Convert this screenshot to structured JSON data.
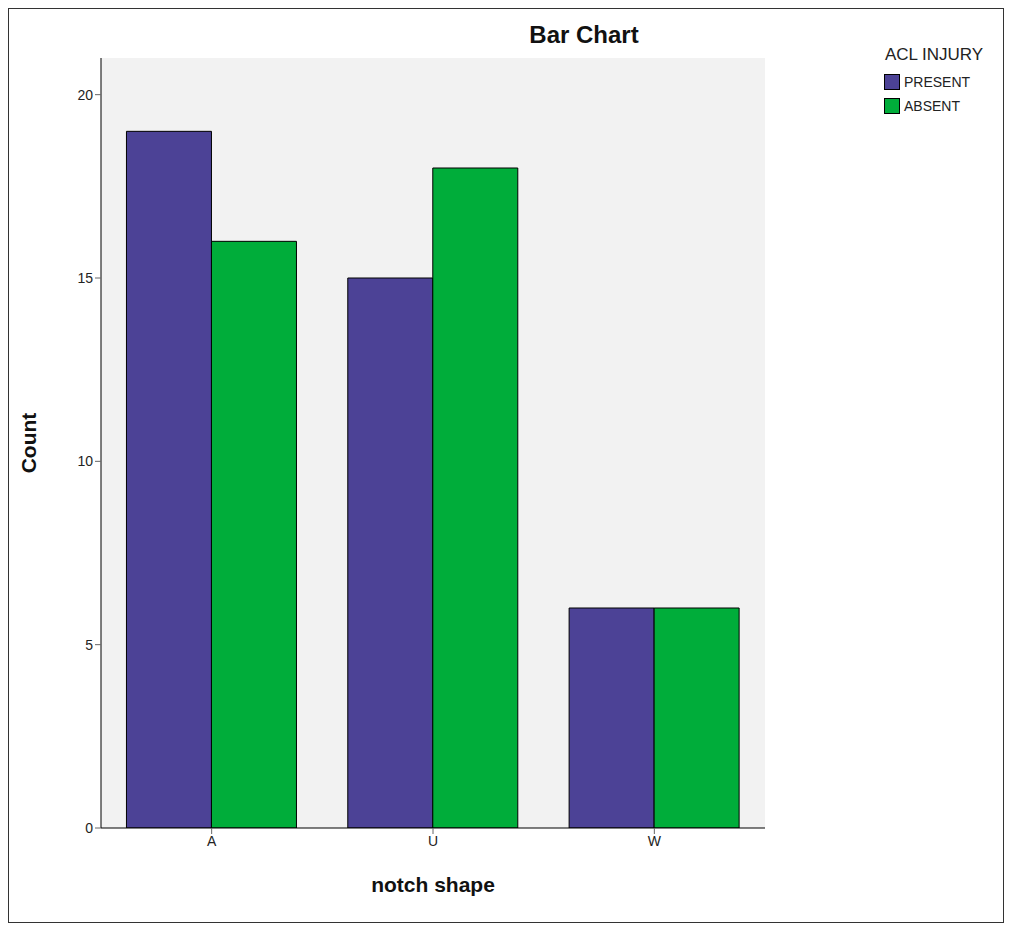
{
  "chart_data": {
    "type": "bar",
    "title": "Bar Chart",
    "x_label": "notch shape",
    "y_label": "Count",
    "legend_title": "ACL INJURY",
    "categories": [
      "A",
      "U",
      "W"
    ],
    "series": [
      {
        "name": "PRESENT",
        "color": "#4c4296",
        "values": [
          19,
          15,
          6
        ]
      },
      {
        "name": "ABSENT",
        "color": "#00ad3a",
        "values": [
          16,
          18,
          6
        ]
      }
    ],
    "ylim": [
      0,
      21
    ],
    "yticks": [
      0,
      5,
      10,
      15,
      20
    ],
    "grid": false,
    "legend": "right"
  }
}
